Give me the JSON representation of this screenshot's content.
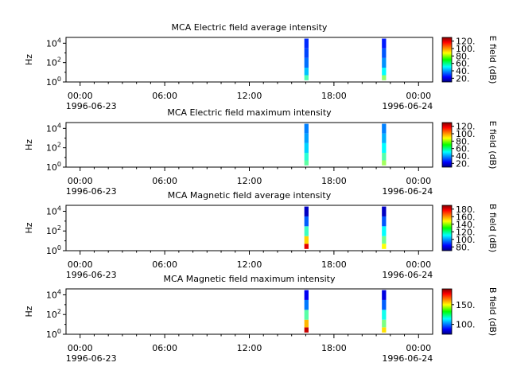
{
  "chart_data": [
    {
      "type": "heatmap",
      "title": "MCA  Electric field average intensity",
      "ylabel": "Hz",
      "y_scale": "log",
      "y_ticks": [
        "10^0",
        "10^2",
        "10^4"
      ],
      "y_range_hz": [
        1,
        40000
      ],
      "x_ticks": [
        "00:00",
        "06:00",
        "12:00",
        "18:00",
        "00:00"
      ],
      "x_dates": [
        "1996-06-23",
        "1996-06-24"
      ],
      "x_range_hours": [
        -1,
        25
      ],
      "colorbar": {
        "label": "E field (dB)",
        "ticks": [
          "20.",
          "40.",
          "60.",
          "80.",
          "100.",
          "120."
        ],
        "range": [
          10,
          130
        ]
      },
      "segments": [
        {
          "start_hour": 15.9,
          "end_hour": 16.2,
          "bands": [
            {
              "f_lo": 1.5,
              "f_hi": 5,
              "db": 64
            },
            {
              "f_lo": 5,
              "f_hi": 30,
              "db": 48
            },
            {
              "f_lo": 30,
              "f_hi": 300,
              "db": 38
            },
            {
              "f_lo": 300,
              "f_hi": 3000,
              "db": 33
            },
            {
              "f_lo": 3000,
              "f_hi": 30000,
              "db": 30
            }
          ]
        },
        {
          "start_hour": 21.4,
          "end_hour": 21.7,
          "bands": [
            {
              "f_lo": 1.5,
              "f_hi": 5,
              "db": 72
            },
            {
              "f_lo": 5,
              "f_hi": 30,
              "db": 55
            },
            {
              "f_lo": 30,
              "f_hi": 300,
              "db": 42
            },
            {
              "f_lo": 300,
              "f_hi": 3000,
              "db": 35
            },
            {
              "f_lo": 3000,
              "f_hi": 30000,
              "db": 28
            }
          ]
        }
      ]
    },
    {
      "type": "heatmap",
      "title": "MCA  Electric field maximum intensity",
      "ylabel": "Hz",
      "y_scale": "log",
      "y_ticks": [
        "10^0",
        "10^2",
        "10^4"
      ],
      "y_range_hz": [
        1,
        40000
      ],
      "x_ticks": [
        "00:00",
        "06:00",
        "12:00",
        "18:00",
        "00:00"
      ],
      "x_dates": [
        "1996-06-23",
        "1996-06-24"
      ],
      "x_range_hours": [
        -1,
        25
      ],
      "colorbar": {
        "label": "E field (dB)",
        "ticks": [
          "20.",
          "40.",
          "60.",
          "80.",
          "100.",
          "120."
        ],
        "range": [
          10,
          130
        ]
      },
      "segments": [
        {
          "start_hour": 15.9,
          "end_hour": 16.2,
          "bands": [
            {
              "f_lo": 1.5,
              "f_hi": 5,
              "db": 66
            },
            {
              "f_lo": 5,
              "f_hi": 30,
              "db": 60
            },
            {
              "f_lo": 30,
              "f_hi": 300,
              "db": 50
            },
            {
              "f_lo": 300,
              "f_hi": 3000,
              "db": 44
            },
            {
              "f_lo": 3000,
              "f_hi": 30000,
              "db": 40
            }
          ]
        },
        {
          "start_hour": 21.4,
          "end_hour": 21.7,
          "bands": [
            {
              "f_lo": 1.5,
              "f_hi": 5,
              "db": 74
            },
            {
              "f_lo": 5,
              "f_hi": 30,
              "db": 65
            },
            {
              "f_lo": 30,
              "f_hi": 300,
              "db": 55
            },
            {
              "f_lo": 300,
              "f_hi": 3000,
              "db": 46
            },
            {
              "f_lo": 3000,
              "f_hi": 30000,
              "db": 40
            }
          ]
        }
      ]
    },
    {
      "type": "heatmap",
      "title": "MCA  Magnetic field average intensity",
      "ylabel": "Hz",
      "y_scale": "log",
      "y_ticks": [
        "10^0",
        "10^2",
        "10^4"
      ],
      "y_range_hz": [
        1,
        40000
      ],
      "x_ticks": [
        "00:00",
        "06:00",
        "12:00",
        "18:00",
        "00:00"
      ],
      "x_dates": [
        "1996-06-23",
        "1996-06-24"
      ],
      "x_range_hours": [
        -1,
        25
      ],
      "colorbar": {
        "label": "B field (dB)",
        "ticks": [
          "80.",
          "100.",
          "120.",
          "140.",
          "160.",
          "180."
        ],
        "range": [
          70,
          190
        ]
      },
      "segments": [
        {
          "start_hour": 15.9,
          "end_hour": 16.2,
          "bands": [
            {
              "f_lo": 1.5,
              "f_hi": 5,
              "db": 178
            },
            {
              "f_lo": 5,
              "f_hi": 30,
              "db": 150
            },
            {
              "f_lo": 30,
              "f_hi": 300,
              "db": 122
            },
            {
              "f_lo": 300,
              "f_hi": 3000,
              "db": 96
            },
            {
              "f_lo": 3000,
              "f_hi": 30000,
              "db": 78
            }
          ]
        },
        {
          "start_hour": 21.4,
          "end_hour": 21.7,
          "bands": [
            {
              "f_lo": 1.5,
              "f_hi": 5,
              "db": 145
            },
            {
              "f_lo": 5,
              "f_hi": 30,
              "db": 128
            },
            {
              "f_lo": 30,
              "f_hi": 300,
              "db": 115
            },
            {
              "f_lo": 300,
              "f_hi": 3000,
              "db": 95
            },
            {
              "f_lo": 3000,
              "f_hi": 30000,
              "db": 78
            }
          ]
        }
      ]
    },
    {
      "type": "heatmap",
      "title": "MCA  Magnetic field maximum intensity",
      "ylabel": "Hz",
      "y_scale": "log",
      "y_ticks": [
        "10^0",
        "10^2",
        "10^4"
      ],
      "y_range_hz": [
        1,
        40000
      ],
      "x_ticks": [
        "00:00",
        "06:00",
        "12:00",
        "18:00",
        "00:00"
      ],
      "x_dates": [
        "1996-06-23",
        "1996-06-24"
      ],
      "x_range_hours": [
        -1,
        25
      ],
      "colorbar": {
        "label": "B field (dB)",
        "ticks": [
          "100.",
          "150."
        ],
        "range": [
          75,
          190
        ]
      },
      "segments": [
        {
          "start_hour": 15.9,
          "end_hour": 16.2,
          "bands": [
            {
              "f_lo": 1.5,
              "f_hi": 5,
              "db": 182
            },
            {
              "f_lo": 5,
              "f_hi": 30,
              "db": 155
            },
            {
              "f_lo": 30,
              "f_hi": 300,
              "db": 128
            },
            {
              "f_lo": 300,
              "f_hi": 3000,
              "db": 103
            },
            {
              "f_lo": 3000,
              "f_hi": 30000,
              "db": 88
            }
          ]
        },
        {
          "start_hour": 21.4,
          "end_hour": 21.7,
          "bands": [
            {
              "f_lo": 1.5,
              "f_hi": 5,
              "db": 150
            },
            {
              "f_lo": 5,
              "f_hi": 30,
              "db": 132
            },
            {
              "f_lo": 30,
              "f_hi": 300,
              "db": 120
            },
            {
              "f_lo": 300,
              "f_hi": 3000,
              "db": 100
            },
            {
              "f_lo": 3000,
              "f_hi": 30000,
              "db": 86
            }
          ]
        }
      ]
    }
  ]
}
